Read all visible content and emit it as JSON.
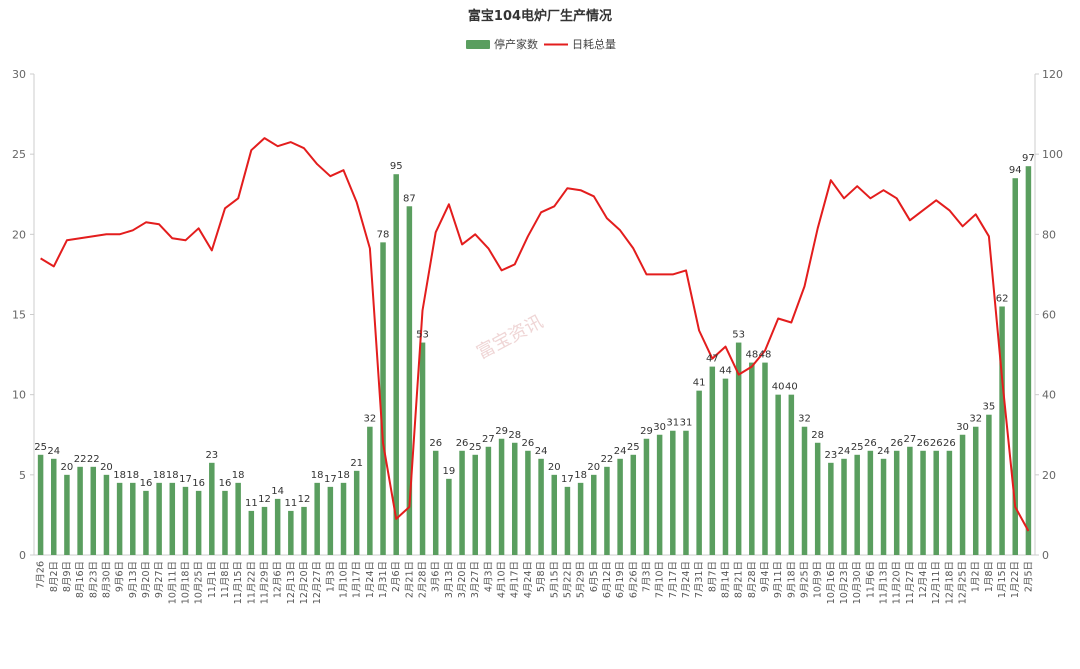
{
  "chart_data": {
    "type": "bar+line",
    "title": "富宝104电炉厂生产情况",
    "legend": [
      "停产家数",
      "日耗总量"
    ],
    "watermark": "富宝资讯",
    "colors": {
      "bar": "#5a9e5f",
      "line": "#e31d1d",
      "axis": "#cccccc"
    },
    "left_axis": {
      "min": 0,
      "max": 30,
      "ticks": [
        "0",
        "5",
        "10",
        "15",
        "20",
        "25",
        "30"
      ]
    },
    "right_axis": {
      "min": 0,
      "max": 120,
      "ticks": [
        "0",
        "20",
        "40",
        "60",
        "80",
        "100",
        "120"
      ]
    },
    "categories": [
      "7月26",
      "8月2日",
      "8月9日",
      "8月16日",
      "8月23日",
      "8月30日",
      "9月6日",
      "9月13日",
      "9月20日",
      "9月27日",
      "10月11日",
      "10月18日",
      "10月25日",
      "11月1日",
      "11月8日",
      "11月15日",
      "11月22日",
      "11月29日",
      "12月6日",
      "12月13日",
      "12月20日",
      "12月27日",
      "1月3日",
      "1月10日",
      "1月17日",
      "1月24日",
      "1月31日",
      "2月6日",
      "2月21日",
      "2月28日",
      "3月6日",
      "3月13日",
      "3月20日",
      "3月27日",
      "4月3日",
      "4月10日",
      "4月17日",
      "4月24日",
      "5月8日",
      "5月15日",
      "5月22日",
      "5月29日",
      "6月5日",
      "6月12日",
      "6月19日",
      "6月26日",
      "7月3日",
      "7月10日",
      "7月17日",
      "7月24日",
      "7月31日",
      "8月7日",
      "8月14日",
      "8月21日",
      "8月28日",
      "9月4日",
      "9月11日",
      "9月18日",
      "9月25日",
      "10月9日",
      "10月16日",
      "10月23日",
      "10月30日",
      "11月6日",
      "11月13日",
      "11月20日",
      "11月27日",
      "12月4日",
      "12月11日",
      "12月18日",
      "12月25日",
      "1月2日",
      "1月8日",
      "1月15日",
      "1月22日",
      "2月5日"
    ],
    "series": [
      {
        "name": "停产家数",
        "type": "bar",
        "axis": "left",
        "values": [
          6.25,
          6,
          5,
          5.5,
          5.5,
          5,
          4.5,
          4.5,
          4,
          4.5,
          4.5,
          4.25,
          4,
          5.75,
          4,
          4.5,
          2.75,
          3,
          3.5,
          2.75,
          3,
          4.5,
          4.25,
          4.5,
          5.25,
          8,
          19.5,
          23.75,
          21.75,
          13.25,
          6.5,
          4.75,
          6.5,
          6.25,
          6.75,
          7.25,
          7,
          6.5,
          6,
          5,
          4.25,
          4.5,
          5,
          5.5,
          6,
          6.25,
          7.25,
          7.5,
          7.75,
          7.75,
          10.25,
          11.75,
          11,
          13.25,
          12,
          12,
          10,
          10,
          8,
          7,
          5.75,
          6,
          6.25,
          6.5,
          6,
          6.5,
          6.75,
          6.5,
          6.5,
          6.5,
          7.5,
          8,
          8.75,
          15.5,
          23.5,
          24.25
        ],
        "labels": [
          "25",
          "24",
          "20",
          "22",
          "22",
          "20",
          "18",
          "18",
          "16",
          "18",
          "18",
          "17",
          "16",
          "23",
          "16",
          "18",
          "11",
          "12",
          "14",
          "11",
          "12",
          "18",
          "17",
          "18",
          "21",
          "32",
          "78",
          "95",
          "87",
          "53",
          "26",
          "19",
          "26",
          "25",
          "27",
          "29",
          "28",
          "26",
          "24",
          "20",
          "17",
          "18",
          "20",
          "22",
          "24",
          "25",
          "29",
          "30",
          "31",
          "31",
          "41",
          "47",
          "44",
          "53",
          "48",
          "48",
          "40",
          "40",
          "32",
          "28",
          "23",
          "24",
          "25",
          "26",
          "24",
          "26",
          "27",
          "26",
          "26",
          "26",
          "30",
          "32",
          "35",
          "62",
          "94",
          "97"
        ]
      },
      {
        "name": "日耗总量",
        "type": "line",
        "axis": "right",
        "values": [
          74,
          72,
          78.5,
          79,
          79.5,
          80,
          80,
          81,
          83,
          82.5,
          79,
          78.5,
          81.5,
          76,
          86.5,
          89,
          101,
          104,
          102,
          103,
          101.5,
          97.5,
          94.5,
          96,
          88,
          76.5,
          28,
          9,
          12,
          61,
          80.5,
          87.5,
          77.5,
          80,
          76.5,
          71,
          72.5,
          79.5,
          85.5,
          87,
          91.5,
          91,
          89.5,
          84,
          81,
          76.5,
          70,
          70,
          70,
          71,
          56,
          49,
          52,
          45,
          47,
          51,
          59,
          58,
          67,
          81.5,
          93.5,
          89,
          92,
          89,
          91,
          89,
          83.5,
          86,
          88.5,
          86,
          82,
          85,
          79.5,
          44,
          12,
          6
        ]
      }
    ]
  }
}
